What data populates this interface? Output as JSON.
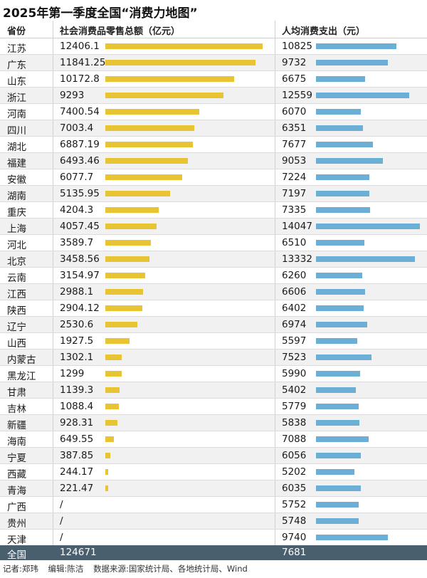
{
  "title": "2025年第一季度全国“消费力地图”",
  "headers": {
    "province": "省份",
    "retail": "社会消费品零售总额（亿元）",
    "spend": "人均消费支出（元）"
  },
  "chart_data": {
    "type": "table",
    "columns": [
      "省份",
      "社会消费品零售总额（亿元）",
      "人均消费支出（元）"
    ],
    "rows": [
      {
        "province": "江苏",
        "retail": "12406.1",
        "retail_value": 12406.1,
        "spend": "10825",
        "spend_value": 10825
      },
      {
        "province": "广东",
        "retail": "11841.25",
        "retail_value": 11841.25,
        "spend": "9732",
        "spend_value": 9732
      },
      {
        "province": "山东",
        "retail": "10172.8",
        "retail_value": 10172.8,
        "spend": "6675",
        "spend_value": 6675
      },
      {
        "province": "浙江",
        "retail": "9293",
        "retail_value": 9293,
        "spend": "12559",
        "spend_value": 12559
      },
      {
        "province": "河南",
        "retail": "7400.54",
        "retail_value": 7400.54,
        "spend": "6070",
        "spend_value": 6070
      },
      {
        "province": "四川",
        "retail": "7003.4",
        "retail_value": 7003.4,
        "spend": "6351",
        "spend_value": 6351
      },
      {
        "province": "湖北",
        "retail": "6887.19",
        "retail_value": 6887.19,
        "spend": "7677",
        "spend_value": 7677
      },
      {
        "province": "福建",
        "retail": "6493.46",
        "retail_value": 6493.46,
        "spend": "9053",
        "spend_value": 9053
      },
      {
        "province": "安徽",
        "retail": "6077.7",
        "retail_value": 6077.7,
        "spend": "7224",
        "spend_value": 7224
      },
      {
        "province": "湖南",
        "retail": "5135.95",
        "retail_value": 5135.95,
        "spend": "7197",
        "spend_value": 7197
      },
      {
        "province": "重庆",
        "retail": "4204.3",
        "retail_value": 4204.3,
        "spend": "7335",
        "spend_value": 7335
      },
      {
        "province": "上海",
        "retail": "4057.45",
        "retail_value": 4057.45,
        "spend": "14047",
        "spend_value": 14047
      },
      {
        "province": "河北",
        "retail": "3589.7",
        "retail_value": 3589.7,
        "spend": "6510",
        "spend_value": 6510
      },
      {
        "province": "北京",
        "retail": "3458.56",
        "retail_value": 3458.56,
        "spend": "13332",
        "spend_value": 13332
      },
      {
        "province": "云南",
        "retail": "3154.97",
        "retail_value": 3154.97,
        "spend": "6260",
        "spend_value": 6260
      },
      {
        "province": "江西",
        "retail": "2988.1",
        "retail_value": 2988.1,
        "spend": "6606",
        "spend_value": 6606
      },
      {
        "province": "陕西",
        "retail": "2904.12",
        "retail_value": 2904.12,
        "spend": "6402",
        "spend_value": 6402
      },
      {
        "province": "辽宁",
        "retail": "2530.6",
        "retail_value": 2530.6,
        "spend": "6974",
        "spend_value": 6974
      },
      {
        "province": "山西",
        "retail": "1927.5",
        "retail_value": 1927.5,
        "spend": "5597",
        "spend_value": 5597
      },
      {
        "province": "内蒙古",
        "retail": "1302.1",
        "retail_value": 1302.1,
        "spend": "7523",
        "spend_value": 7523
      },
      {
        "province": "黑龙江",
        "retail": "1299",
        "retail_value": 1299,
        "spend": "5990",
        "spend_value": 5990
      },
      {
        "province": "甘肃",
        "retail": "1139.3",
        "retail_value": 1139.3,
        "spend": "5402",
        "spend_value": 5402
      },
      {
        "province": "吉林",
        "retail": "1088.4",
        "retail_value": 1088.4,
        "spend": "5779",
        "spend_value": 5779
      },
      {
        "province": "新疆",
        "retail": "928.31",
        "retail_value": 928.31,
        "spend": "5838",
        "spend_value": 5838
      },
      {
        "province": "海南",
        "retail": "649.55",
        "retail_value": 649.55,
        "spend": "7088",
        "spend_value": 7088
      },
      {
        "province": "宁夏",
        "retail": "387.85",
        "retail_value": 387.85,
        "spend": "6056",
        "spend_value": 6056
      },
      {
        "province": "西藏",
        "retail": "244.17",
        "retail_value": 244.17,
        "spend": "5202",
        "spend_value": 5202
      },
      {
        "province": "青海",
        "retail": "221.47",
        "retail_value": 221.47,
        "spend": "6035",
        "spend_value": 6035
      },
      {
        "province": "广西",
        "retail": "/",
        "retail_value": null,
        "spend": "5752",
        "spend_value": 5752
      },
      {
        "province": "贵州",
        "retail": "/",
        "retail_value": null,
        "spend": "5748",
        "spend_value": 5748
      },
      {
        "province": "天津",
        "retail": "/",
        "retail_value": null,
        "spend": "9740",
        "spend_value": 9740
      }
    ],
    "total": {
      "province": "全国",
      "retail": "124671",
      "spend": "7681"
    },
    "retail_max": 12406.1,
    "spend_max": 14047
  },
  "footer": {
    "reporter": "记者:郑玮",
    "editor": "编辑:陈洁",
    "source": "数据来源:国家统计局、各地统计局、Wind"
  },
  "colors": {
    "retail_bar": "#e8c333",
    "spend_bar": "#6baed6",
    "total_row_bg": "#4a5f6e",
    "alt_row_bg": "#f1f1f1"
  }
}
